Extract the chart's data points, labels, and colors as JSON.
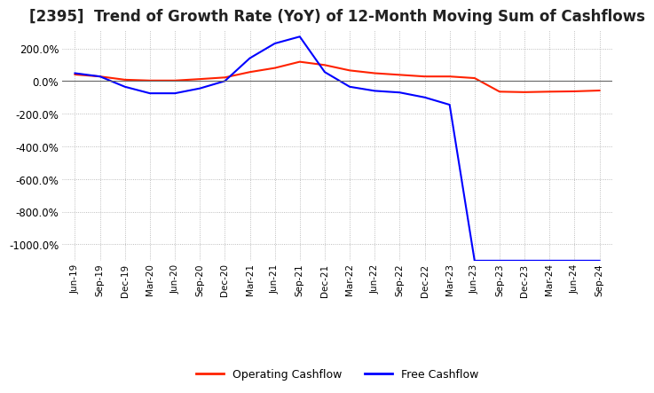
{
  "title": "[2395]  Trend of Growth Rate (YoY) of 12-Month Moving Sum of Cashflows",
  "title_fontsize": 12,
  "background_color": "#ffffff",
  "grid_color": "#aaaaaa",
  "ylim": [
    -1100,
    310
  ],
  "yticks": [
    200,
    0,
    -200,
    -400,
    -600,
    -800,
    -1000
  ],
  "x_labels": [
    "Jun-19",
    "Sep-19",
    "Dec-19",
    "Mar-20",
    "Jun-20",
    "Sep-20",
    "Dec-20",
    "Mar-21",
    "Jun-21",
    "Sep-21",
    "Dec-21",
    "Mar-22",
    "Jun-22",
    "Sep-22",
    "Dec-22",
    "Mar-23",
    "Jun-23",
    "Sep-23",
    "Dec-23",
    "Mar-24",
    "Jun-24",
    "Sep-24"
  ],
  "operating_cf": [
    40,
    28,
    8,
    3,
    3,
    12,
    22,
    55,
    80,
    118,
    98,
    65,
    48,
    38,
    28,
    28,
    18,
    -65,
    -68,
    -65,
    -63,
    -58
  ],
  "free_cf": [
    48,
    28,
    -35,
    -75,
    -75,
    -45,
    0,
    140,
    230,
    272,
    55,
    -35,
    -60,
    -70,
    -100,
    -145,
    -1100,
    -1100,
    -1100,
    -1100,
    -1100,
    -1100
  ],
  "operating_color": "#ff2200",
  "free_color": "#0000ff",
  "legend_labels": [
    "Operating Cashflow",
    "Free Cashflow"
  ],
  "zero_line_color": "#666666"
}
